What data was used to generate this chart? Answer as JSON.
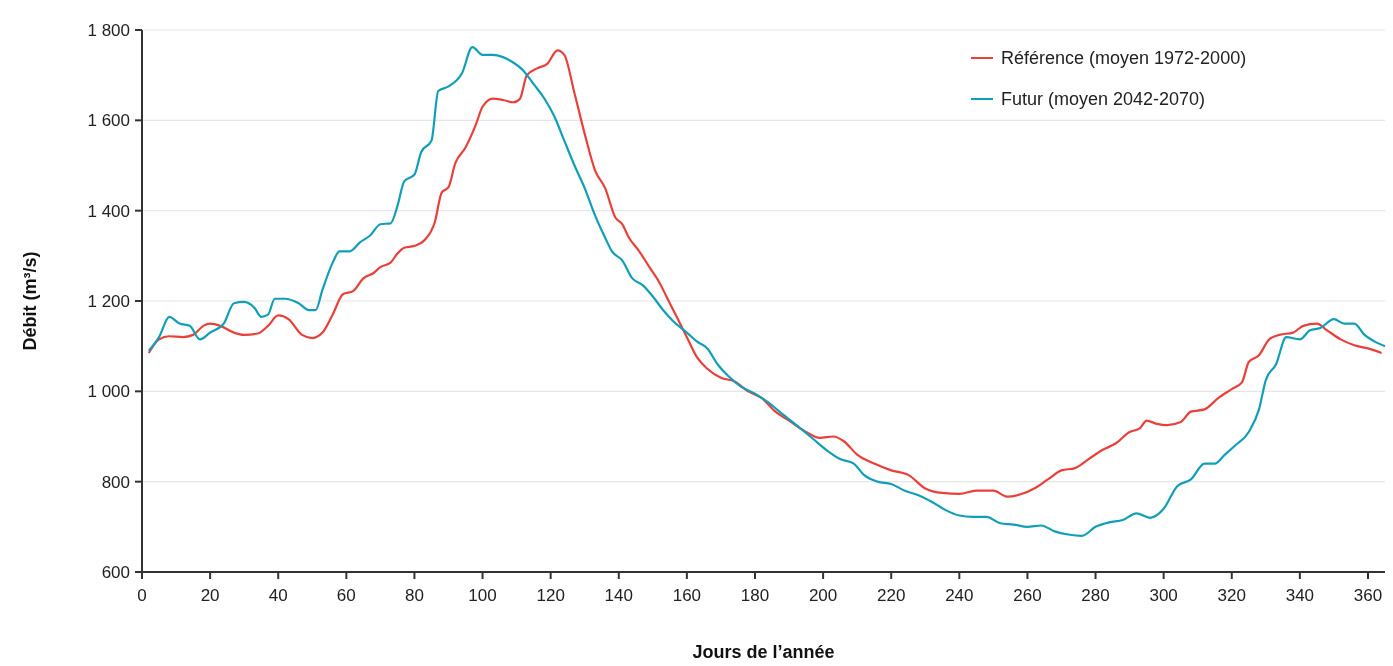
{
  "chart_data": {
    "type": "line",
    "xlabel": "Jours de l’année",
    "ylabel": "Débit (m³/s)",
    "xlim": [
      0,
      365
    ],
    "xticks": [
      0,
      20,
      40,
      60,
      80,
      100,
      120,
      140,
      160,
      180,
      200,
      220,
      240,
      260,
      280,
      300,
      320,
      340,
      360
    ],
    "ylim": [
      600,
      1800
    ],
    "yticks": [
      600,
      800,
      {
        "value": 1000,
        "label": "1 000"
      },
      {
        "value": 1200,
        "label": "1 200"
      },
      {
        "value": 1400,
        "label": "1 400"
      },
      {
        "value": 1600,
        "label": "1 600"
      },
      {
        "value": 1800,
        "label": "1 800"
      }
    ],
    "grid": "y",
    "legend": "top right",
    "marker": "none",
    "line_style": "solid",
    "series": [
      {
        "name": "Référence (moyen 1972-2000)",
        "color": "#e8413a",
        "x": [
          2,
          5,
          8,
          12,
          15,
          18,
          20,
          23,
          27,
          30,
          34,
          37,
          40,
          43,
          47,
          50,
          53,
          56,
          59,
          62,
          65,
          68,
          70,
          73,
          75,
          77,
          80,
          83,
          86,
          88,
          90,
          92,
          95,
          98,
          100,
          103,
          106,
          109,
          111,
          113,
          116,
          119,
          122,
          124,
          127,
          130,
          133,
          136,
          139,
          141,
          143,
          146,
          149,
          152,
          154,
          157,
          160,
          163,
          166,
          170,
          174,
          178,
          182,
          186,
          190,
          195,
          199,
          203,
          206,
          210,
          215,
          220,
          225,
          230,
          235,
          240,
          245,
          250,
          254,
          258,
          262,
          266,
          270,
          274,
          278,
          282,
          286,
          290,
          293,
          295,
          298,
          301,
          305,
          308,
          312,
          316,
          320,
          323,
          325,
          328,
          331,
          334,
          338,
          341,
          345,
          348,
          352,
          356,
          360,
          364
        ],
        "values": [
          1085,
          1115,
          1122,
          1120,
          1125,
          1145,
          1150,
          1145,
          1130,
          1125,
          1128,
          1145,
          1168,
          1160,
          1125,
          1118,
          1130,
          1170,
          1215,
          1222,
          1250,
          1262,
          1275,
          1285,
          1305,
          1318,
          1322,
          1335,
          1375,
          1440,
          1452,
          1505,
          1540,
          1590,
          1630,
          1648,
          1645,
          1640,
          1648,
          1700,
          1715,
          1725,
          1755,
          1745,
          1660,
          1570,
          1490,
          1450,
          1385,
          1370,
          1340,
          1310,
          1275,
          1240,
          1210,
          1165,
          1120,
          1075,
          1050,
          1030,
          1022,
          1000,
          985,
          955,
          935,
          910,
          897,
          900,
          890,
          860,
          840,
          825,
          815,
          785,
          775,
          773,
          780,
          780,
          767,
          772,
          785,
          805,
          825,
          830,
          850,
          870,
          885,
          910,
          918,
          935,
          928,
          925,
          932,
          955,
          960,
          985,
          1005,
          1020,
          1065,
          1080,
          1115,
          1125,
          1130,
          1145,
          1150,
          1135,
          1115,
          1102,
          1095,
          1085
        ]
      },
      {
        "name": "Futur (moyen 2042-2070)",
        "color": "#119fb8",
        "x": [
          2,
          5,
          8,
          11,
          14,
          17,
          20,
          24,
          27,
          30,
          33,
          35,
          37,
          39,
          42,
          46,
          49,
          51,
          53,
          56,
          58,
          61,
          64,
          67,
          70,
          73,
          75,
          77,
          80,
          82,
          85,
          87,
          90,
          94,
          97,
          100,
          103,
          106,
          109,
          112,
          115,
          118,
          121,
          124,
          127,
          130,
          133,
          136,
          138,
          141,
          144,
          147,
          150,
          153,
          156,
          160,
          163,
          166,
          169,
          172,
          176,
          180,
          184,
          188,
          193,
          197,
          201,
          205,
          209,
          212,
          216,
          220,
          224,
          228,
          232,
          236,
          240,
          244,
          248,
          252,
          256,
          260,
          264,
          268,
          272,
          276,
          280,
          284,
          288,
          292,
          296,
          300,
          304,
          308,
          312,
          315,
          318,
          321,
          325,
          328,
          330,
          333,
          336,
          340,
          343,
          346,
          350,
          353,
          356,
          359,
          362,
          365
        ],
        "values": [
          1090,
          1120,
          1165,
          1150,
          1145,
          1115,
          1130,
          1150,
          1195,
          1198,
          1185,
          1165,
          1170,
          1205,
          1205,
          1195,
          1180,
          1180,
          1225,
          1285,
          1310,
          1310,
          1330,
          1345,
          1370,
          1372,
          1410,
          1465,
          1480,
          1530,
          1555,
          1665,
          1675,
          1705,
          1762,
          1745,
          1745,
          1740,
          1728,
          1710,
          1680,
          1650,
          1610,
          1555,
          1500,
          1450,
          1390,
          1340,
          1310,
          1290,
          1250,
          1235,
          1210,
          1180,
          1155,
          1130,
          1110,
          1095,
          1060,
          1035,
          1010,
          995,
          975,
          950,
          920,
          895,
          870,
          850,
          840,
          815,
          800,
          795,
          780,
          770,
          755,
          737,
          725,
          722,
          722,
          708,
          705,
          700,
          703,
          690,
          683,
          680,
          700,
          710,
          715,
          730,
          720,
          740,
          790,
          805,
          840,
          840,
          860,
          880,
          910,
          960,
          1025,
          1060,
          1120,
          1115,
          1135,
          1140,
          1160,
          1150,
          1150,
          1125,
          1110,
          1100
        ]
      }
    ]
  }
}
